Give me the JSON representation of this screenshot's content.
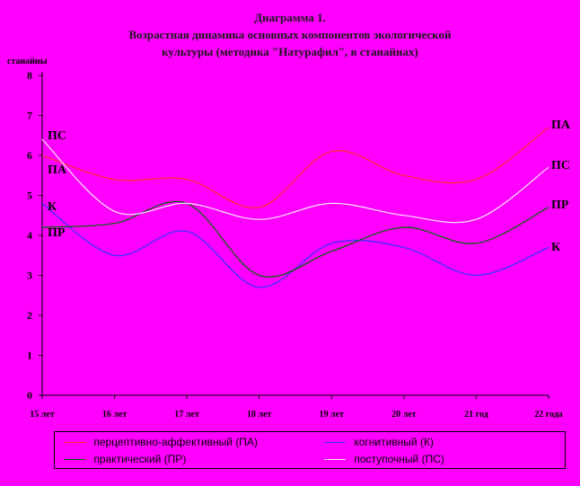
{
  "colors": {
    "background": "#ff00ff",
    "axis": "#000000",
    "PA": "#ff3333",
    "K": "#3333ff",
    "PR": "#006600",
    "PS": "#ffe8ff"
  },
  "title_lines": [
    "Диаграмма 1.",
    "Возрастная динамика основных компонентов экологической",
    "культуры (методика \"Натурафил\", в станайнах)"
  ],
  "chart_data": {
    "type": "line",
    "title": "Диаграмма 1. Возрастная динамика основных компонентов экологической культуры (методика \"Натурафил\", в станайнах)",
    "ylabel": "станайны",
    "xlabel": "",
    "ylim": [
      0,
      8
    ],
    "yticks": [
      "0",
      "1",
      "2",
      "3",
      "4",
      "5",
      "6",
      "7",
      "8"
    ],
    "categories": [
      "15 лет",
      "16 лет",
      "17 лет",
      "18 лет",
      "19 лет",
      "20 лет",
      "21 год",
      "22 года"
    ],
    "grid": false,
    "legend_position": "bottom",
    "series": [
      {
        "name": "перцептивно-аффективный (ПА)",
        "short": "ПА",
        "color": "#ff3333",
        "values": [
          6.0,
          5.4,
          5.4,
          4.7,
          6.1,
          5.5,
          5.4,
          6.7
        ]
      },
      {
        "name": "когнитивный (К)",
        "short": "К",
        "color": "#3333ff",
        "values": [
          4.8,
          3.5,
          4.1,
          2.7,
          3.8,
          3.7,
          3.0,
          3.7
        ]
      },
      {
        "name": "практический (ПР)",
        "short": "ПР",
        "color": "#006600",
        "values": [
          4.2,
          4.3,
          4.8,
          3.0,
          3.6,
          4.2,
          3.8,
          4.7
        ]
      },
      {
        "name": "поступочный (ПС)",
        "short": "ПС",
        "color": "#ffe8ff",
        "values": [
          6.4,
          4.6,
          4.8,
          4.4,
          4.8,
          4.5,
          4.4,
          5.7
        ]
      }
    ],
    "left_labels": [
      "ПС",
      "ПА",
      "К",
      "ПР"
    ],
    "right_labels": [
      "ПА",
      "ПС",
      "ПР",
      "К"
    ]
  }
}
